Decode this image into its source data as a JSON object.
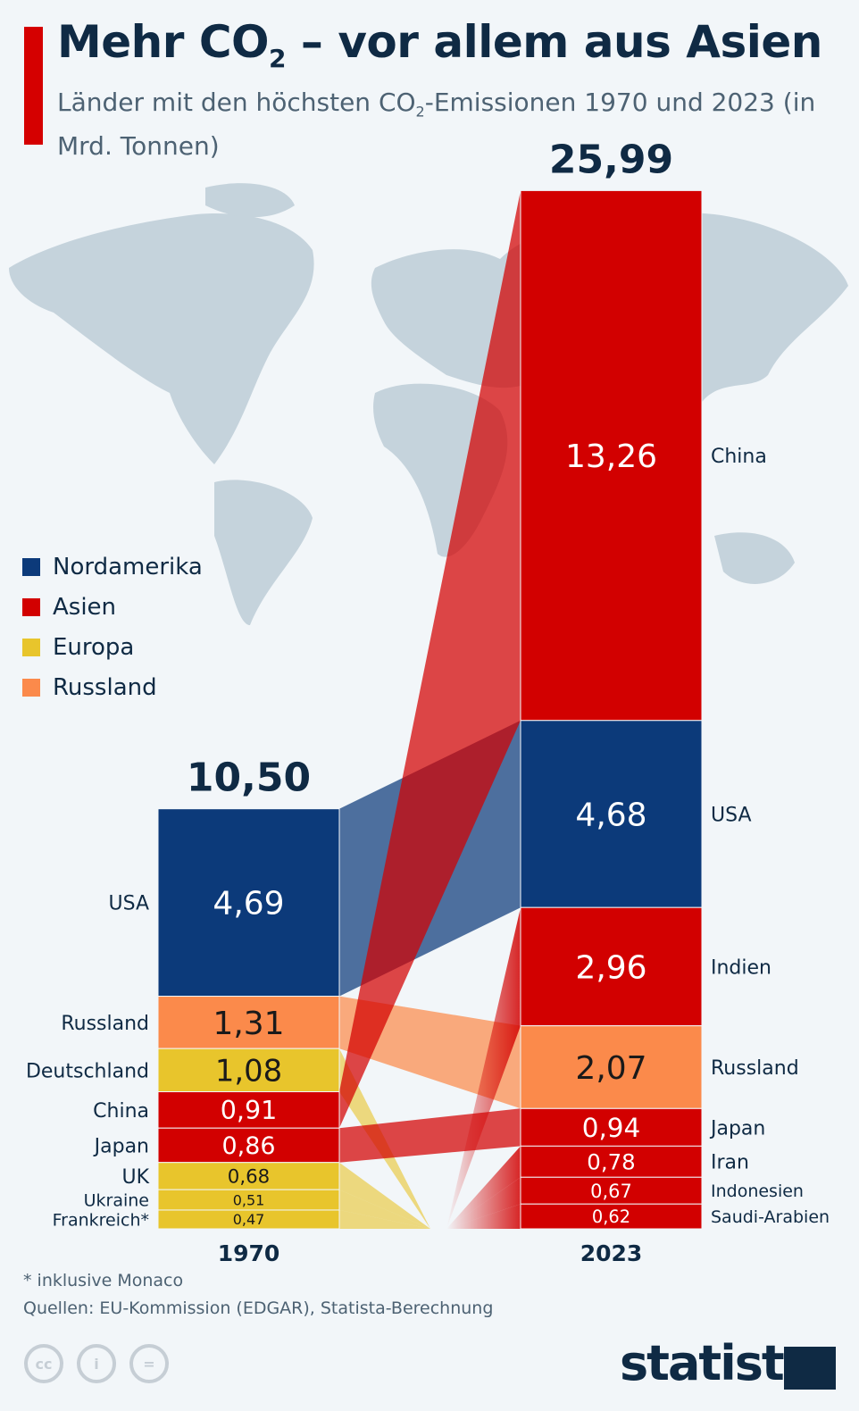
{
  "header": {
    "title_pre": "Mehr CO",
    "title_sub": "2",
    "title_post": " – vor allem aus Asien",
    "subtitle_pre": "Länder mit den höchsten CO",
    "subtitle_sub": "2",
    "subtitle_post": "-Emissionen 1970 und 2023 (in Mrd. Tonnen)"
  },
  "legend": [
    {
      "label": "Nordamerika",
      "color": "#0c3a7a"
    },
    {
      "label": "Asien",
      "color": "#d20000"
    },
    {
      "label": "Europa",
      "color": "#e8c52c"
    },
    {
      "label": "Russland",
      "color": "#fb8a4b"
    }
  ],
  "chart_data": {
    "type": "stacked-bar-flow",
    "unit": "Mrd. Tonnen",
    "categories": [
      "1970",
      "2023"
    ],
    "totals": [
      "10,50",
      "25,99"
    ],
    "bars": [
      {
        "year": "1970",
        "segments": [
          {
            "country": "USA",
            "value": 4.69,
            "label": "4,69",
            "region": "Nordamerika"
          },
          {
            "country": "Russland",
            "value": 1.31,
            "label": "1,31",
            "region": "Russland"
          },
          {
            "country": "Deutschland",
            "value": 1.08,
            "label": "1,08",
            "region": "Europa"
          },
          {
            "country": "China",
            "value": 0.91,
            "label": "0,91",
            "region": "Asien"
          },
          {
            "country": "Japan",
            "value": 0.86,
            "label": "0,86",
            "region": "Asien"
          },
          {
            "country": "UK",
            "value": 0.68,
            "label": "0,68",
            "region": "Europa"
          },
          {
            "country": "Ukraine",
            "value": 0.51,
            "label": "0,51",
            "region": "Europa"
          },
          {
            "country": "Frankreich*",
            "value": 0.47,
            "label": "0,47",
            "region": "Europa"
          }
        ]
      },
      {
        "year": "2023",
        "segments": [
          {
            "country": "China",
            "value": 13.26,
            "label": "13,26",
            "region": "Asien"
          },
          {
            "country": "USA",
            "value": 4.68,
            "label": "4,68",
            "region": "Nordamerika"
          },
          {
            "country": "Indien",
            "value": 2.96,
            "label": "2,96",
            "region": "Asien"
          },
          {
            "country": "Russland",
            "value": 2.07,
            "label": "2,07",
            "region": "Russland"
          },
          {
            "country": "Japan",
            "value": 0.94,
            "label": "0,94",
            "region": "Asien"
          },
          {
            "country": "Iran",
            "value": 0.78,
            "label": "0,78",
            "region": "Asien"
          },
          {
            "country": "Indonesien",
            "value": 0.67,
            "label": "0,67",
            "region": "Asien"
          },
          {
            "country": "Saudi-Arabien",
            "value": 0.62,
            "label": "0,62",
            "region": "Asien"
          }
        ]
      }
    ]
  },
  "footer": {
    "note": "* inklusive Monaco",
    "source": "Quellen: EU-Kommission (EDGAR), Statista-Berechnung",
    "cc_label": "cc",
    "brand": "statista"
  }
}
